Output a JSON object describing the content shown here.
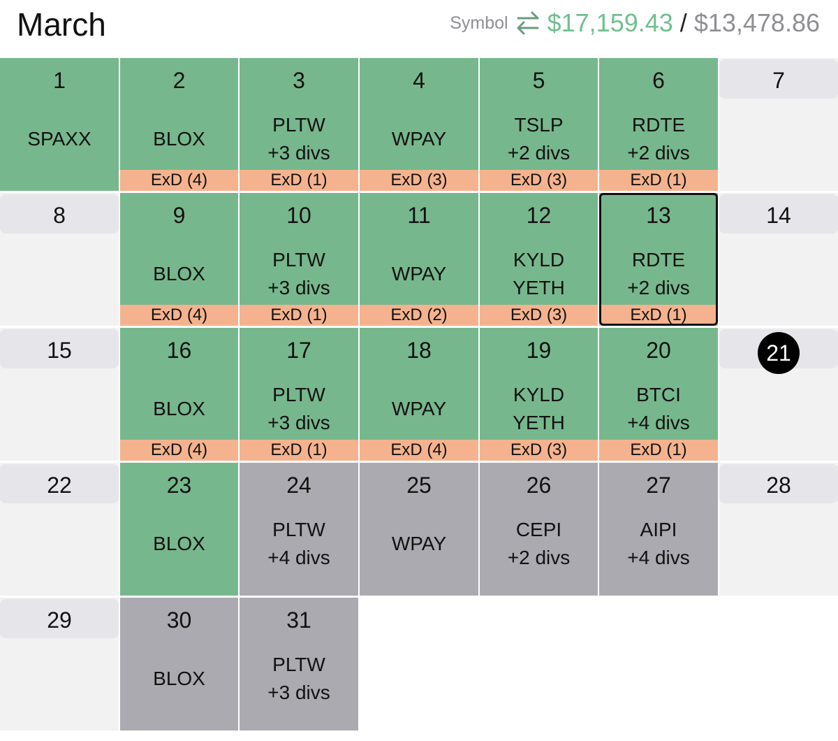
{
  "header": {
    "title": "March",
    "symbol_label": "Symbol",
    "amount_paid": "$17,159.43",
    "separator": "/",
    "amount_total": "$13,478.86"
  },
  "days": [
    {
      "day": 1,
      "status": "paid",
      "lines": [
        "SPAXX"
      ]
    },
    {
      "day": 2,
      "status": "paid",
      "lines": [
        "BLOX"
      ],
      "exd": "ExD (4)"
    },
    {
      "day": 3,
      "status": "paid",
      "lines": [
        "PLTW",
        "+3 divs"
      ],
      "exd": "ExD (1)"
    },
    {
      "day": 4,
      "status": "paid",
      "lines": [
        "WPAY"
      ],
      "exd": "ExD (3)"
    },
    {
      "day": 5,
      "status": "paid",
      "lines": [
        "TSLP",
        "+2 divs"
      ],
      "exd": "ExD (3)"
    },
    {
      "day": 6,
      "status": "paid",
      "lines": [
        "RDTE",
        "+2 divs"
      ],
      "exd": "ExD (1)"
    },
    {
      "day": 7,
      "status": "weekend",
      "lines": []
    },
    {
      "day": 8,
      "status": "weekend",
      "lines": []
    },
    {
      "day": 9,
      "status": "paid",
      "lines": [
        "BLOX"
      ],
      "exd": "ExD (4)"
    },
    {
      "day": 10,
      "status": "paid",
      "lines": [
        "PLTW",
        "+3 divs"
      ],
      "exd": "ExD (1)"
    },
    {
      "day": 11,
      "status": "paid",
      "lines": [
        "WPAY"
      ],
      "exd": "ExD (2)"
    },
    {
      "day": 12,
      "status": "paid",
      "lines": [
        "KYLD",
        "YETH"
      ],
      "exd": "ExD (3)"
    },
    {
      "day": 13,
      "status": "paid",
      "lines": [
        "RDTE",
        "+2 divs"
      ],
      "exd": "ExD (1)",
      "selected": true
    },
    {
      "day": 14,
      "status": "weekend",
      "lines": []
    },
    {
      "day": 15,
      "status": "weekend",
      "lines": []
    },
    {
      "day": 16,
      "status": "paid",
      "lines": [
        "BLOX"
      ],
      "exd": "ExD (4)"
    },
    {
      "day": 17,
      "status": "paid",
      "lines": [
        "PLTW",
        "+3 divs"
      ],
      "exd": "ExD (1)"
    },
    {
      "day": 18,
      "status": "paid",
      "lines": [
        "WPAY"
      ],
      "exd": "ExD (4)"
    },
    {
      "day": 19,
      "status": "paid",
      "lines": [
        "KYLD",
        "YETH"
      ],
      "exd": "ExD (3)"
    },
    {
      "day": 20,
      "status": "paid",
      "lines": [
        "BTCI",
        "+4 divs"
      ],
      "exd": "ExD (1)"
    },
    {
      "day": 21,
      "status": "weekend",
      "lines": [],
      "today": true
    },
    {
      "day": 22,
      "status": "weekend",
      "lines": []
    },
    {
      "day": 23,
      "status": "paid",
      "lines": [
        "BLOX"
      ]
    },
    {
      "day": 24,
      "status": "upcoming",
      "lines": [
        "PLTW",
        "+4 divs"
      ]
    },
    {
      "day": 25,
      "status": "upcoming",
      "lines": [
        "WPAY"
      ]
    },
    {
      "day": 26,
      "status": "upcoming",
      "lines": [
        "CEPI",
        "+2 divs"
      ]
    },
    {
      "day": 27,
      "status": "upcoming",
      "lines": [
        "AIPI",
        "+4 divs"
      ]
    },
    {
      "day": 28,
      "status": "weekend",
      "lines": []
    },
    {
      "day": 29,
      "status": "weekend",
      "lines": []
    },
    {
      "day": 30,
      "status": "upcoming",
      "lines": [
        "BLOX"
      ]
    },
    {
      "day": 31,
      "status": "upcoming",
      "lines": [
        "PLTW",
        "+3 divs"
      ]
    }
  ]
}
